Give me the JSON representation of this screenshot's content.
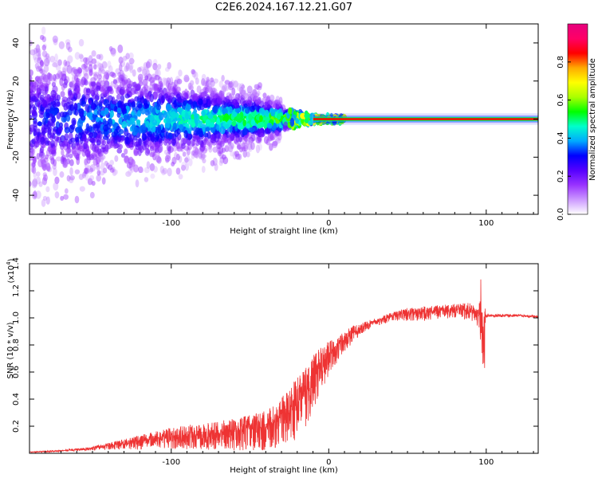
{
  "title": "C2E6.2024.167.12.21.G07",
  "chart_data": [
    {
      "type": "heatmap",
      "name": "spectrogram",
      "xlabel": "Height of straight line (km)",
      "ylabel": "Frequency (Hz)",
      "xlim": [
        -190,
        133
      ],
      "ylim": [
        -50,
        50
      ],
      "xticks": [
        -100,
        0,
        100
      ],
      "yticks": [
        -40,
        -20,
        0,
        20,
        40
      ],
      "colorbar": {
        "label": "Normalized spectral amplitude",
        "range": [
          0,
          1
        ],
        "ticks": [
          0.0,
          0.2,
          0.4,
          0.6,
          0.8
        ],
        "tick_labels": [
          "0.0",
          "0.2",
          "0.4",
          "0.6",
          "0.8"
        ],
        "colors": [
          "#ffffff",
          "#cc99ff",
          "#9933ff",
          "#5500ff",
          "#0000ff",
          "#00aaff",
          "#00ffcc",
          "#00ff00",
          "#aaff00",
          "#ffff00",
          "#ffaa00",
          "#ff0000",
          "#ff0066",
          "#e6007e"
        ]
      },
      "features": [
        {
          "description": "noisy region",
          "x_range": [
            -190,
            -20
          ],
          "freq_spread_hz": [
            -40,
            40
          ]
        },
        {
          "description": "carrier line",
          "x_range": [
            0,
            133
          ],
          "freq_hz": 0,
          "amplitude": 0.9
        }
      ]
    },
    {
      "type": "line",
      "name": "snr",
      "xlabel": "Height of straight line (km)",
      "ylabel": "SNR (10 * v/v)",
      "y_scale_label": "(x10",
      "y_scale_exp": "4",
      "xlim": [
        -190,
        133
      ],
      "ylim": [
        0,
        1.4
      ],
      "xticks": [
        -100,
        0,
        100
      ],
      "yticks": [
        0.2,
        0.4,
        0.6,
        0.8,
        1.0,
        1.2,
        1.4
      ],
      "ytick_labels": [
        "0.2",
        "0.4",
        "0.6",
        "0.8",
        "1.0",
        "1.2",
        "1.4"
      ],
      "color": "#ee3333",
      "x": [
        -190,
        -170,
        -160,
        -150,
        -140,
        -130,
        -120,
        -110,
        -100,
        -90,
        -80,
        -70,
        -60,
        -50,
        -40,
        -35,
        -30,
        -25,
        -20,
        -15,
        -10,
        -5,
        0,
        5,
        10,
        15,
        20,
        25,
        30,
        35,
        40,
        45,
        50,
        60,
        70,
        80,
        90,
        95,
        98,
        100,
        105,
        110,
        120,
        133
      ],
      "values": [
        0.01,
        0.02,
        0.03,
        0.04,
        0.06,
        0.08,
        0.1,
        0.12,
        0.14,
        0.15,
        0.16,
        0.17,
        0.18,
        0.2,
        0.22,
        0.25,
        0.3,
        0.35,
        0.42,
        0.5,
        0.6,
        0.68,
        0.75,
        0.8,
        0.85,
        0.9,
        0.93,
        0.96,
        0.98,
        1.0,
        1.02,
        1.03,
        1.04,
        1.05,
        1.06,
        1.07,
        1.07,
        1.06,
        0.95,
        1.02,
        1.02,
        1.02,
        1.02,
        1.01
      ],
      "noise_amplitude": [
        0.005,
        0.01,
        0.015,
        0.02,
        0.04,
        0.06,
        0.08,
        0.1,
        0.12,
        0.14,
        0.15,
        0.16,
        0.18,
        0.2,
        0.22,
        0.24,
        0.28,
        0.3,
        0.35,
        0.35,
        0.32,
        0.25,
        0.2,
        0.15,
        0.12,
        0.1,
        0.06,
        0.05,
        0.04,
        0.05,
        0.05,
        0.06,
        0.07,
        0.08,
        0.08,
        0.08,
        0.1,
        0.15,
        0.3,
        0.02,
        0.02,
        0.02,
        0.015,
        0.015
      ]
    }
  ]
}
